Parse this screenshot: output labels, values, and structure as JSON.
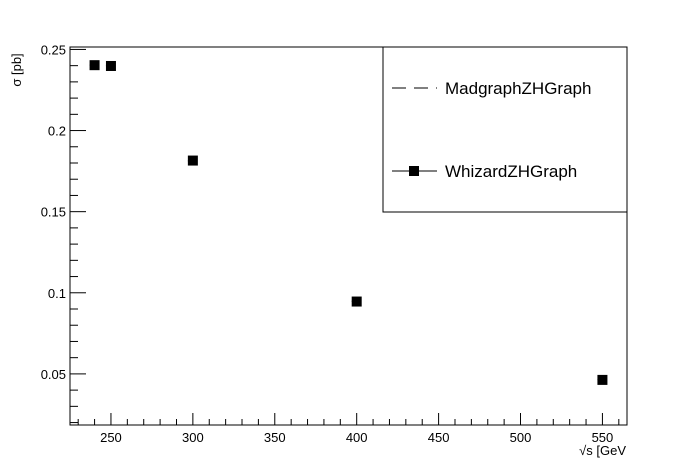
{
  "chart_data": {
    "type": "scatter",
    "xlabel": "√s [GeV",
    "ylabel": "σ [pb]",
    "xlim": [
      225,
      565
    ],
    "ylim": [
      0.0185,
      0.2515
    ],
    "x_major_ticks": [
      250,
      300,
      350,
      400,
      450,
      500,
      550
    ],
    "x_tick_labels": [
      "250",
      "300",
      "350",
      "400",
      "450",
      "500",
      "550"
    ],
    "y_major_ticks": [
      0.05,
      0.1,
      0.15,
      0.2,
      0.25
    ],
    "y_tick_labels": [
      "0.05",
      "0.1",
      "0.15",
      "0.2",
      "0.25"
    ],
    "grid": false,
    "legend_position": "top-right",
    "series": [
      {
        "name": "MadgraphZHGraph",
        "style": "dashed-line",
        "color": "#000000",
        "x": [
          240,
          250,
          300,
          400,
          550
        ],
        "values": [
          0.2403,
          0.24,
          0.1813,
          0.0948,
          0.0465
        ]
      },
      {
        "name": "WhizardZHGraph",
        "style": "square-marker",
        "color": "#000000",
        "x": [
          240,
          250,
          300,
          400,
          550
        ],
        "values": [
          0.2403,
          0.2398,
          0.1815,
          0.0946,
          0.0463
        ]
      }
    ]
  }
}
